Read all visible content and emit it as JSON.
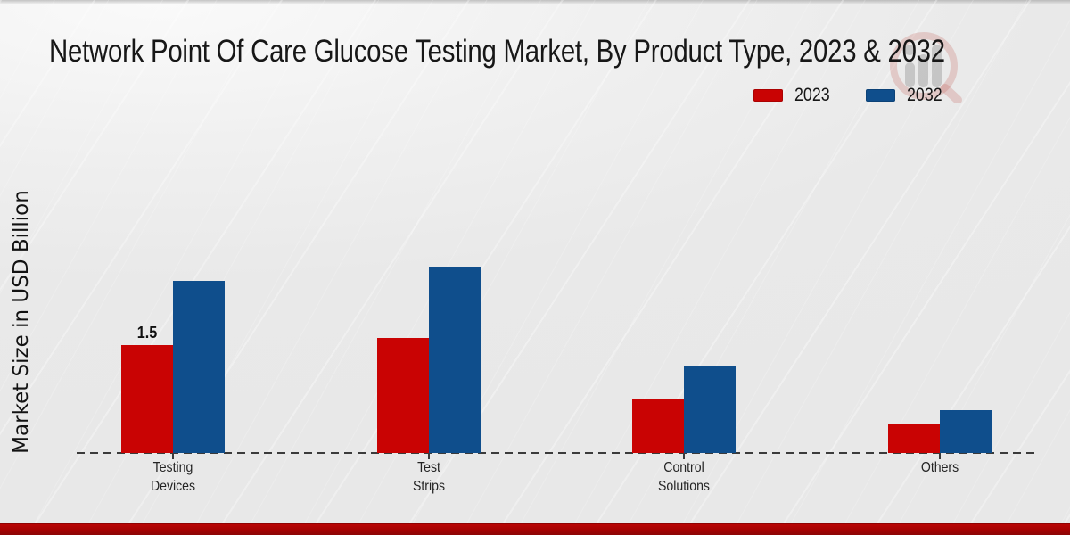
{
  "title": "Network Point Of Care Glucose Testing Market, By Product Type, 2023 & 2032",
  "ylabel": "Market Size in USD Billion",
  "legend": {
    "items": [
      {
        "label": "2023",
        "color": "#c90303"
      },
      {
        "label": "2032",
        "color": "#0f4e8c"
      }
    ]
  },
  "colors": {
    "series_2023_red": "#c90303",
    "series_2032_blue": "#0f4e8c",
    "footer_red": "#a40202",
    "axis_dash": "#3b3b3b",
    "background": "#e9e9e9"
  },
  "watermark": {
    "icon": "growth-bars-logo",
    "ring_color": "#c0514a",
    "bars_color": "#8f8f8f"
  },
  "chart_data": {
    "type": "bar",
    "title": "Network Point Of Care Glucose Testing Market, By Product Type, 2023 & 2032",
    "ylabel": "Market Size in USD Billion",
    "xlabel": "",
    "categories": [
      "Testing Devices",
      "Test Strips",
      "Control Solutions",
      "Others"
    ],
    "category_label_lines": [
      [
        "Testing",
        "Devices"
      ],
      [
        "Test",
        "Strips"
      ],
      [
        "Control",
        "Solutions"
      ],
      [
        "Others"
      ]
    ],
    "series": [
      {
        "name": "2023",
        "color": "#c90303",
        "values": [
          1.5,
          1.6,
          0.75,
          0.4
        ]
      },
      {
        "name": "2032",
        "color": "#0f4e8c",
        "values": [
          2.4,
          2.6,
          1.2,
          0.6
        ]
      }
    ],
    "data_labels": [
      {
        "series": "2023",
        "category": "Testing Devices",
        "text": "1.5"
      }
    ],
    "unit": "USD Billion",
    "grid": false,
    "y_axis_ticks_visible": false,
    "baseline_style": "dashed",
    "legend_position": "upper right"
  }
}
